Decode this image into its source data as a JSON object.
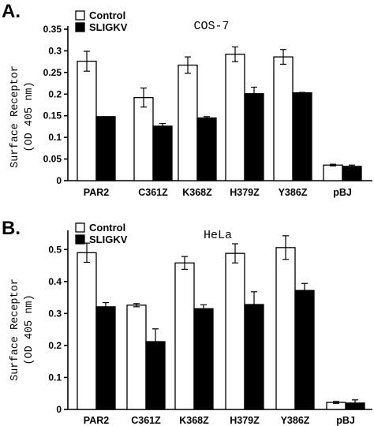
{
  "chart_data": [
    {
      "type": "bar",
      "panel": "A.",
      "title": "COS-7",
      "ylabel": [
        "Surface Receptor",
        "(OD 405 nm)"
      ],
      "categories": [
        "PAR2",
        "C361Z",
        "K368Z",
        "H379Z",
        "Y386Z",
        "pBJ"
      ],
      "ylim": [
        0,
        0.35
      ],
      "yticks": [
        0,
        0.05,
        0.1,
        0.15,
        0.2,
        0.25,
        0.3,
        0.35
      ],
      "ytick_labels": [
        "0",
        "0.05",
        "0.1",
        "0.15",
        "0.2",
        "0.25",
        "0.3",
        "0.35"
      ],
      "series": [
        {
          "name": "Control",
          "color": "#ffffff",
          "values": [
            0.276,
            0.192,
            0.267,
            0.292,
            0.286,
            0.036
          ],
          "errors": [
            0.023,
            0.022,
            0.019,
            0.017,
            0.017,
            0.002
          ]
        },
        {
          "name": "SLIGKV",
          "color": "#000000",
          "values": [
            0.148,
            0.126,
            0.145,
            0.201,
            0.203,
            0.033
          ],
          "errors": [
            0.0,
            0.006,
            0.003,
            0.015,
            0.001,
            0.003
          ]
        }
      ],
      "legend_position": "top-left"
    },
    {
      "type": "bar",
      "panel": "B.",
      "title": "HeLa",
      "ylabel": [
        "Surface Receptor",
        "(OD 405 nm)"
      ],
      "categories": [
        "PAR2",
        "C361Z",
        "K368Z",
        "H379Z",
        "Y386Z",
        "pBJ"
      ],
      "ylim": [
        0,
        0.55
      ],
      "yticks": [
        0,
        0.1,
        0.2,
        0.3,
        0.4,
        0.5
      ],
      "ytick_labels": [
        "0",
        "0.1",
        "0.2",
        "0.3",
        "0.4",
        "0.5"
      ],
      "series": [
        {
          "name": "Control",
          "color": "#ffffff",
          "values": [
            0.49,
            0.326,
            0.458,
            0.488,
            0.506,
            0.022
          ],
          "errors": [
            0.03,
            0.005,
            0.02,
            0.03,
            0.037,
            0.003
          ]
        },
        {
          "name": "SLIGKV",
          "color": "#000000",
          "values": [
            0.321,
            0.212,
            0.315,
            0.328,
            0.372,
            0.02
          ],
          "errors": [
            0.013,
            0.04,
            0.012,
            0.04,
            0.022,
            0.01
          ]
        }
      ],
      "legend_position": "top-left"
    }
  ]
}
